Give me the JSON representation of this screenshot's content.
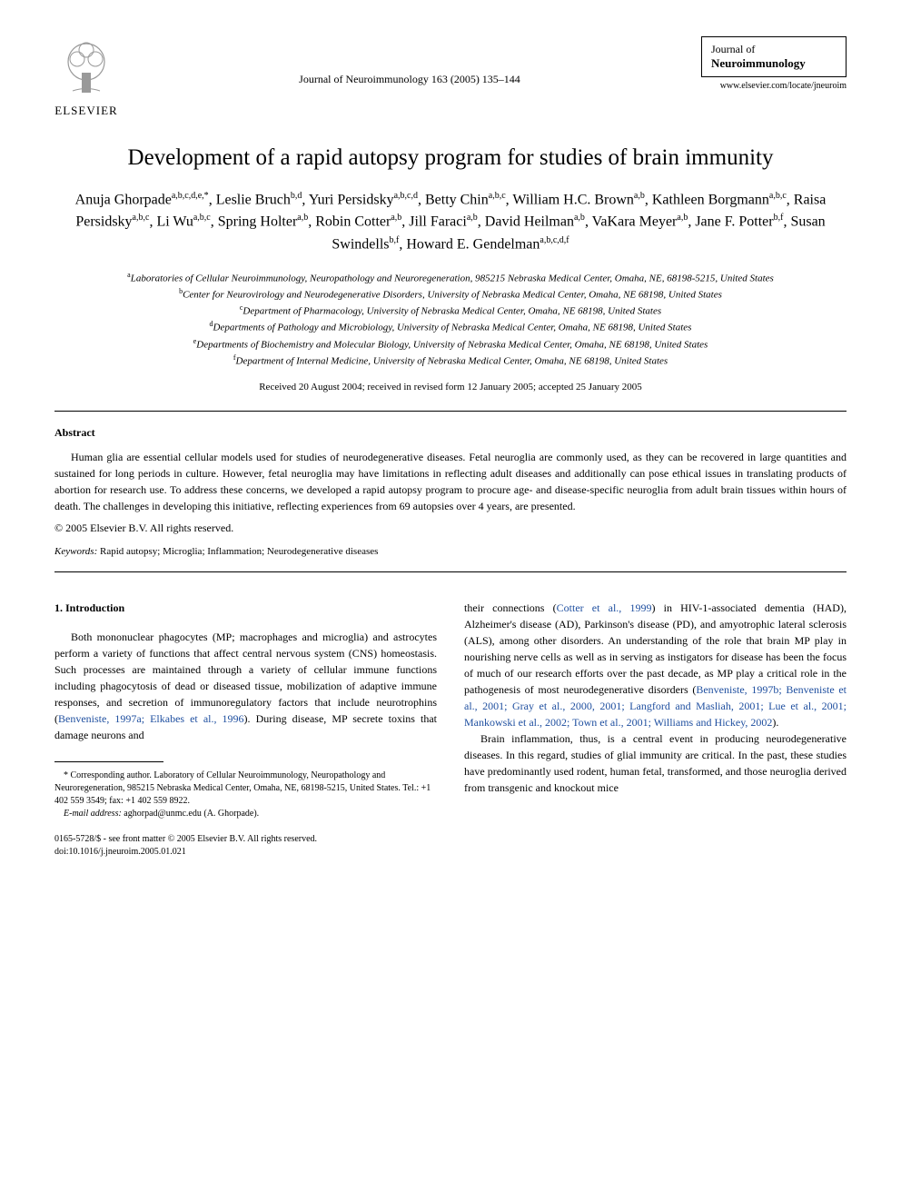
{
  "header": {
    "publisher": "ELSEVIER",
    "journal_ref": "Journal of Neuroimmunology 163 (2005) 135–144",
    "journal_label_top": "Journal of",
    "journal_label_bold": "Neuroimmunology",
    "journal_url": "www.elsevier.com/locate/jneuroim"
  },
  "article": {
    "title": "Development of a rapid autopsy program for studies of brain immunity",
    "authors_html": "Anuja Ghorpade<sup>a,b,c,d,e,*</sup>, Leslie Bruch<sup>b,d</sup>, Yuri Persidsky<sup>a,b,c,d</sup>, Betty Chin<sup>a,b,c</sup>, William H.C. Brown<sup>a,b</sup>, Kathleen Borgmann<sup>a,b,c</sup>, Raisa Persidsky<sup>a,b,c</sup>, Li Wu<sup>a,b,c</sup>, Spring Holter<sup>a,b</sup>, Robin Cotter<sup>a,b</sup>, Jill Faraci<sup>a,b</sup>, David Heilman<sup>a,b</sup>, VaKara Meyer<sup>a,b</sup>, Jane F. Potter<sup>b,f</sup>, Susan Swindells<sup>b,f</sup>, Howard E. Gendelman<sup>a,b,c,d,f</sup>",
    "affiliations": [
      {
        "sup": "a",
        "text": "Laboratories of Cellular Neuroimmunology, Neuropathology and Neuroregeneration, 985215 Nebraska Medical Center, Omaha, NE, 68198-5215, United States"
      },
      {
        "sup": "b",
        "text": "Center for Neurovirology and Neurodegenerative Disorders, University of Nebraska Medical Center, Omaha, NE 68198, United States"
      },
      {
        "sup": "c",
        "text": "Department of Pharmacology, University of Nebraska Medical Center, Omaha, NE 68198, United States"
      },
      {
        "sup": "d",
        "text": "Departments of Pathology and Microbiology, University of Nebraska Medical Center, Omaha, NE 68198, United States"
      },
      {
        "sup": "e",
        "text": "Departments of Biochemistry and Molecular Biology, University of Nebraska Medical Center, Omaha, NE 68198, United States"
      },
      {
        "sup": "f",
        "text": "Department of Internal Medicine, University of Nebraska Medical Center, Omaha, NE 68198, United States"
      }
    ],
    "dates": "Received 20 August 2004; received in revised form 12 January 2005; accepted 25 January 2005"
  },
  "abstract": {
    "heading": "Abstract",
    "text": "Human glia are essential cellular models used for studies of neurodegenerative diseases. Fetal neuroglia are commonly used, as they can be recovered in large quantities and sustained for long periods in culture. However, fetal neuroglia may have limitations in reflecting adult diseases and additionally can pose ethical issues in translating products of abortion for research use. To address these concerns, we developed a rapid autopsy program to procure age- and disease-specific neuroglia from adult brain tissues within hours of death. The challenges in developing this initiative, reflecting experiences from 69 autopsies over 4 years, are presented.",
    "copyright": "© 2005 Elsevier B.V. All rights reserved."
  },
  "keywords": {
    "label": "Keywords:",
    "text": "Rapid autopsy; Microglia; Inflammation; Neurodegenerative diseases"
  },
  "intro": {
    "heading": "1. Introduction",
    "col1_p1_pre": "Both mononuclear phagocytes (MP; macrophages and microglia) and astrocytes perform a variety of functions that affect central nervous system (CNS) homeostasis. Such processes are maintained through a variety of cellular immune functions including phagocytosis of dead or diseased tissue, mobilization of adaptive immune responses, and secretion of immunoregulatory factors that include neurotrophins (",
    "col1_cite1": "Benveniste, 1997a; Elkabes et al., 1996",
    "col1_p1_post": "). During disease, MP secrete toxins that damage neurons and",
    "col2_p1_pre": "their connections (",
    "col2_cite1": "Cotter et al., 1999",
    "col2_p1_mid": ") in HIV-1-associated dementia (HAD), Alzheimer's disease (AD), Parkinson's disease (PD), and amyotrophic lateral sclerosis (ALS), among other disorders. An understanding of the role that brain MP play in nourishing nerve cells as well as in serving as instigators for disease has been the focus of much of our research efforts over the past decade, as MP play a critical role in the pathogenesis of most neurodegenerative disorders (",
    "col2_cite2": "Benveniste, 1997b; Benveniste et al., 2001; Gray et al., 2000, 2001; Langford and Masliah, 2001; Lue et al., 2001; Mankowski et al., 2002; Town et al., 2001; Williams and Hickey, 2002",
    "col2_p1_post": ").",
    "col2_p2": "Brain inflammation, thus, is a central event in producing neurodegenerative diseases. In this regard, studies of glial immunity are critical. In the past, these studies have predominantly used rodent, human fetal, transformed, and those neuroglia derived from transgenic and knockout mice"
  },
  "footnote": {
    "corr": "* Corresponding author. Laboratory of Cellular Neuroimmunology, Neuropathology and Neuroregeneration, 985215 Nebraska Medical Center, Omaha, NE, 68198-5215, United States. Tel.: +1 402 559 3549; fax: +1 402 559 8922.",
    "email_label": "E-mail address:",
    "email": "aghorpad@unmc.edu (A. Ghorpade)."
  },
  "footer": {
    "line1": "0165-5728/$ - see front matter © 2005 Elsevier B.V. All rights reserved.",
    "line2": "doi:10.1016/j.jneuroim.2005.01.021"
  },
  "colors": {
    "cite": "#2050a0",
    "text": "#000000",
    "bg": "#ffffff"
  }
}
